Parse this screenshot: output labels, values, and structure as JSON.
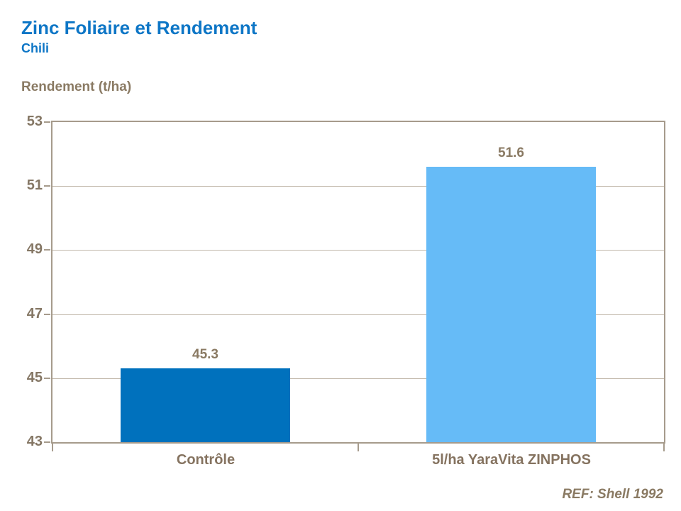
{
  "header": {
    "title": "Zinc Foliaire et Rendement",
    "subtitle": "Chili"
  },
  "chart_data": {
    "type": "bar",
    "title": "Zinc Foliaire et Rendement",
    "subtitle": "Chili",
    "ylabel": "Rendement (t/ha)",
    "xlabel": "",
    "categories": [
      "Contrôle",
      "5l/ha YaraVita ZINPHOS"
    ],
    "values": [
      45.3,
      51.6
    ],
    "data_labels": [
      "45.3",
      "51.6"
    ],
    "bar_colors": [
      "#0071bd",
      "#66bbf7"
    ],
    "ylim": [
      43,
      53
    ],
    "yticks": [
      43,
      45,
      47,
      49,
      51,
      53
    ],
    "grid": true,
    "legend": "none"
  },
  "footer": {
    "ref": "REF: Shell 1992"
  },
  "colors": {
    "title_blue": "#0d76c6",
    "text_brown": "#8a7a63",
    "axis": "#a69b8c",
    "gridline": "#c2b8ab",
    "bar_control": "#0071bd",
    "bar_treatment": "#66bbf7"
  }
}
